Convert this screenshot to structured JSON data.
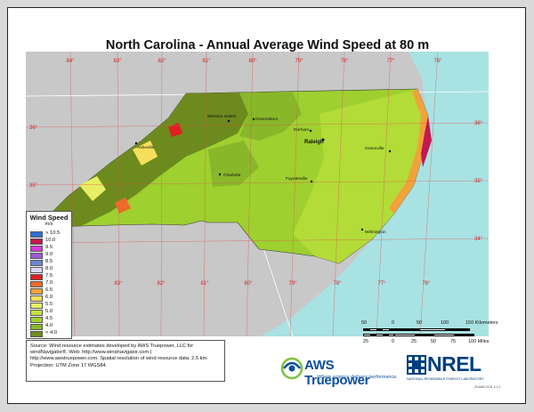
{
  "title": "North Carolina - Annual Average Wind Speed at 80 m",
  "map": {
    "longitude_labels_top": [
      "84°",
      "83°",
      "82°",
      "81°",
      "80°",
      "79°",
      "78°",
      "77°",
      "76°"
    ],
    "longitude_labels_bottom": [
      "83°",
      "82°",
      "81°",
      "80°",
      "79°",
      "78°",
      "77°",
      "76°"
    ],
    "latitude_labels_left": [
      "36°",
      "35°",
      "34°"
    ],
    "latitude_labels_right": [
      "36°",
      "35°",
      "34°"
    ],
    "cities": [
      {
        "name": "Winston-Salem"
      },
      {
        "name": "Greensboro"
      },
      {
        "name": "Durham"
      },
      {
        "name": "Raleigh"
      },
      {
        "name": "Asheville"
      },
      {
        "name": "Charlotte"
      },
      {
        "name": "Greenville"
      },
      {
        "name": "Fayetteville"
      },
      {
        "name": "Wilmington"
      }
    ],
    "colors": {
      "background_land": "#c8c8c8",
      "ocean": "#a9e2e3",
      "state_base": "#9ed02f",
      "mountains_dark": "#6d8a1e",
      "grid": "#ff3333"
    }
  },
  "legend": {
    "title": "Wind Speed",
    "unit": "m/s",
    "items": [
      {
        "label": "> 10.5",
        "color": "#2f6fd6"
      },
      {
        "label": "10.0",
        "color": "#c1184f"
      },
      {
        "label": "9.5",
        "color": "#d83ad8"
      },
      {
        "label": "9.0",
        "color": "#9c5ad8"
      },
      {
        "label": "8.5",
        "color": "#6e86d8"
      },
      {
        "label": "8.0",
        "color": "#d8d8ff"
      },
      {
        "label": "7.5",
        "color": "#e02020"
      },
      {
        "label": "7.0",
        "color": "#f06a2a"
      },
      {
        "label": "6.5",
        "color": "#f2a23a"
      },
      {
        "label": "6.0",
        "color": "#f7df5e"
      },
      {
        "label": "5.5",
        "color": "#e7ee63"
      },
      {
        "label": "5.0",
        "color": "#c4e23f"
      },
      {
        "label": "4.5",
        "color": "#a2cf2c"
      },
      {
        "label": "4.0",
        "color": "#88b72a"
      },
      {
        "label": "< 4.0",
        "color": "#6d8a1e"
      }
    ]
  },
  "source_text": "Source: Wind resource estimates developed by AWS Truepower, LLC for windNavigator®. Web: http://www.windnavigator.com | http://www.awstruepower.com. Spatial resolution of wind resource data: 2.5 km. Projection: UTM Zone 17 WGS84.",
  "scale": {
    "km_labels": [
      "50",
      "0",
      "50",
      "100",
      "150 Kilometers"
    ],
    "mile_labels": [
      "25",
      "0",
      "25",
      "50",
      "75",
      "100 Miles"
    ]
  },
  "logos": {
    "aws_name": "AWS Truepower",
    "aws_tagline": "Where science delivers performance.",
    "nrel_name": "NREL",
    "nrel_tagline": "NATIONAL RENEWABLE ENERGY LABORATORY"
  },
  "footnote": "20-MAY-2011 2.1.1"
}
